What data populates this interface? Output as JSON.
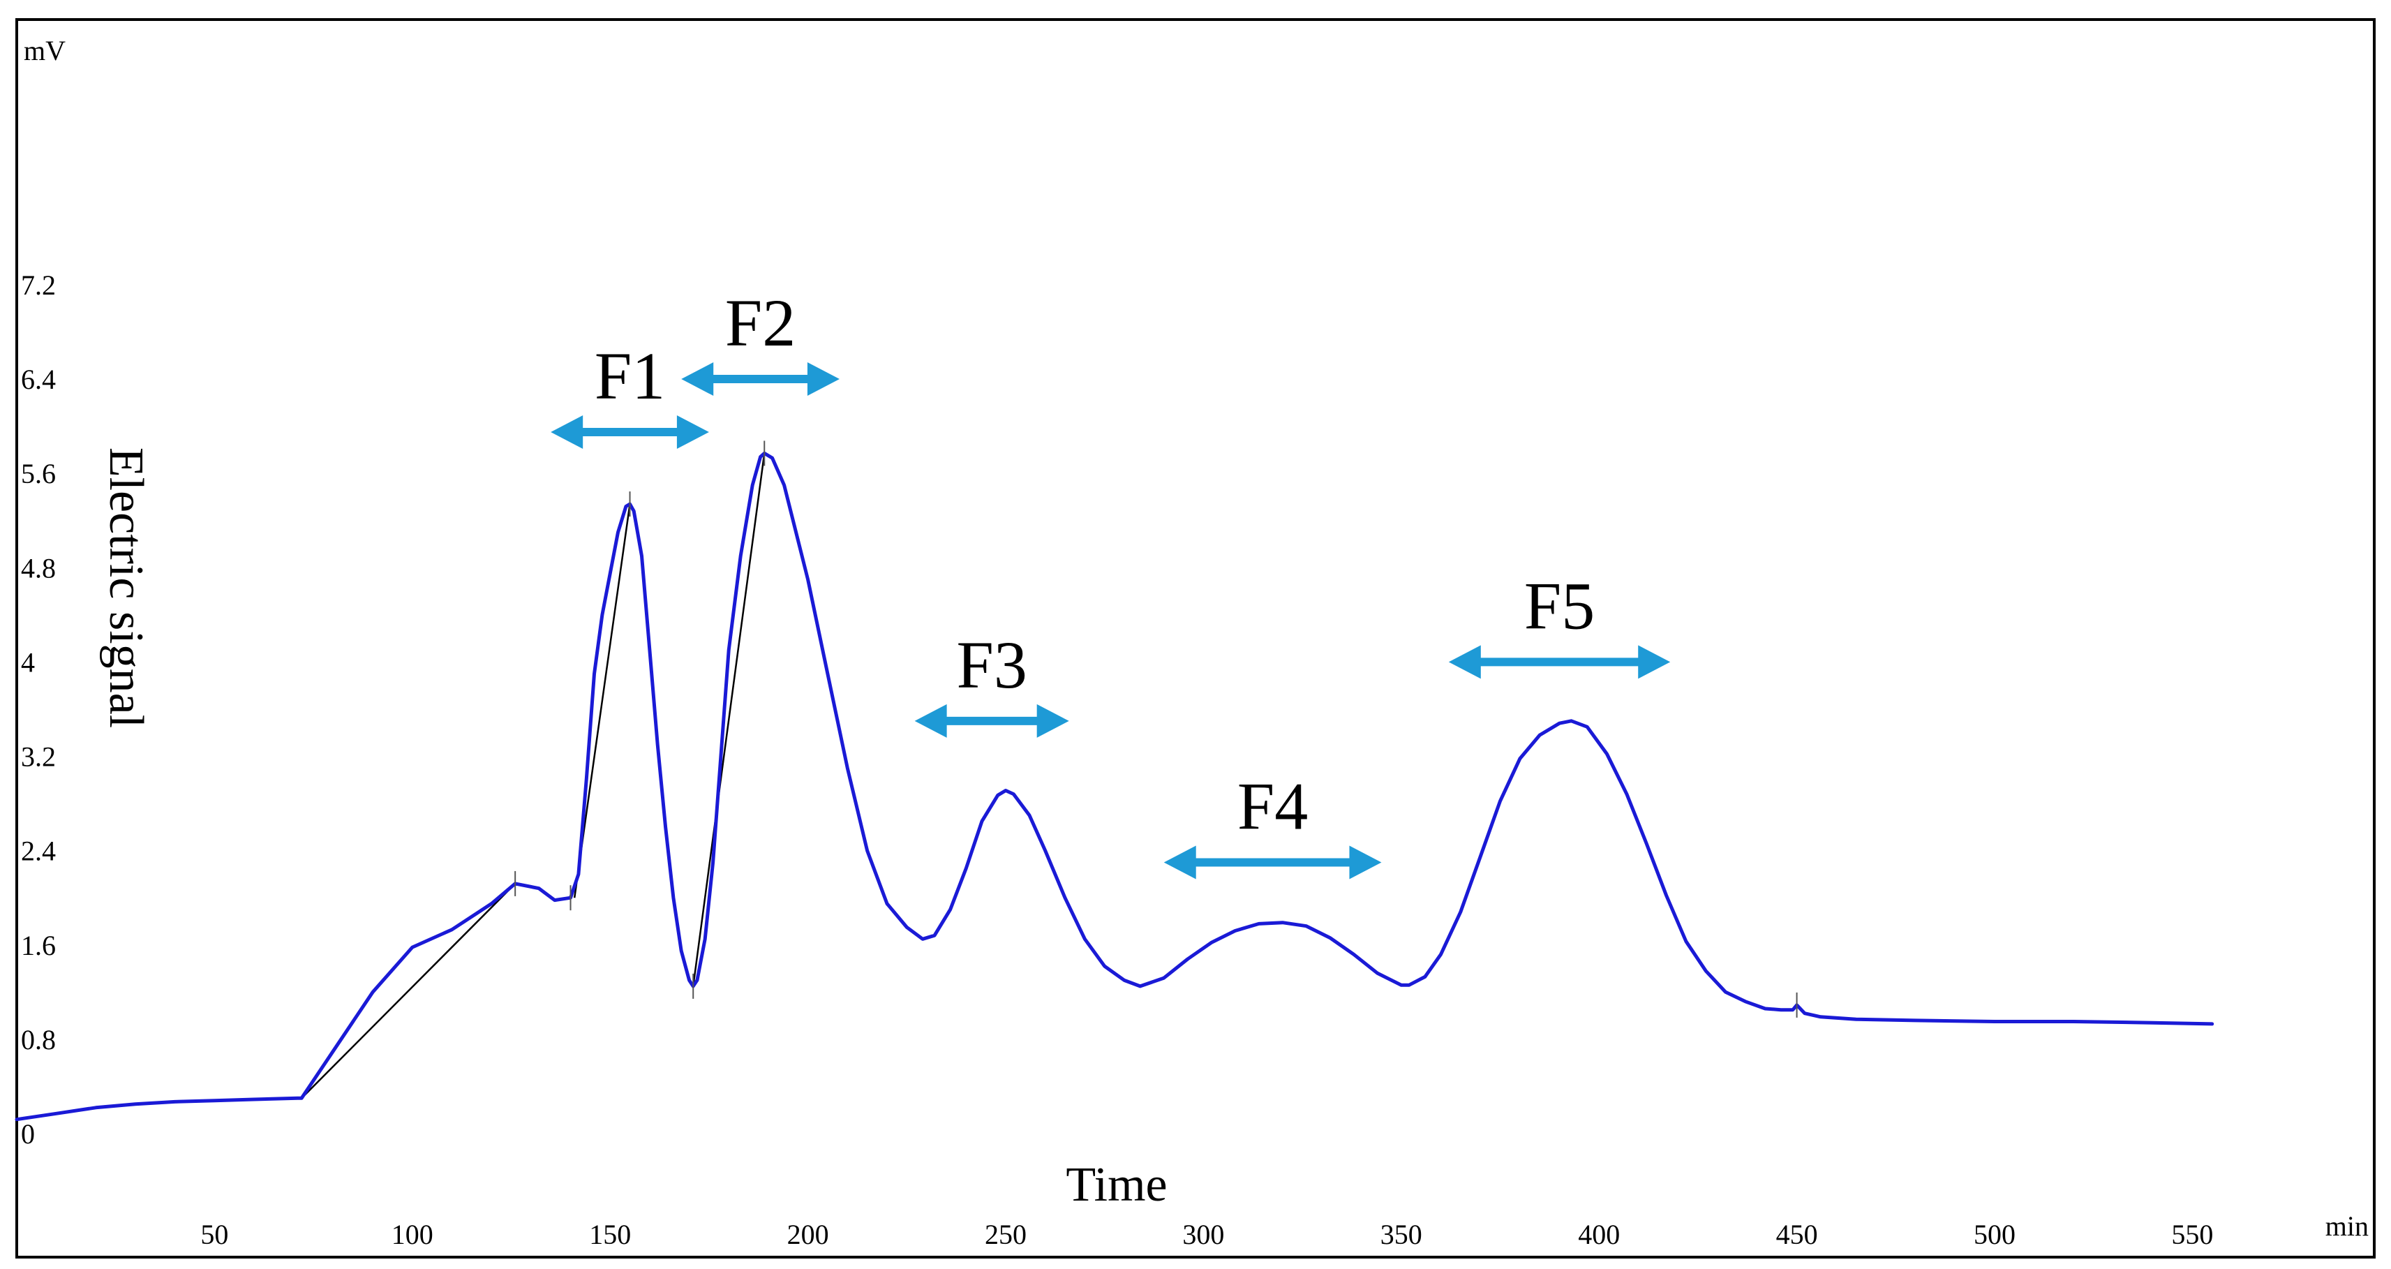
{
  "chart_data": {
    "type": "line",
    "y_unit": "mV",
    "x_unit": "min",
    "xlabel": "Time",
    "ylabel": "Electric signal",
    "xlim": [
      0,
      585
    ],
    "ylim": [
      0,
      7.2
    ],
    "x_ticks": [
      50,
      100,
      150,
      200,
      250,
      300,
      350,
      400,
      450,
      500,
      550
    ],
    "y_ticks": [
      0,
      0.8,
      1.6,
      2.4,
      3.2,
      4,
      4.8,
      5.6,
      6.4,
      7.2
    ],
    "y_tick_labels": [
      "0",
      "0.8",
      "1.6",
      "2.4",
      "3.2",
      "4",
      "4.8",
      "5.6",
      "6.4",
      "7.2"
    ],
    "grid": false,
    "series": [
      {
        "color": "#1a1ad6",
        "points": [
          [
            0,
            0.12
          ],
          [
            10,
            0.17
          ],
          [
            20,
            0.22
          ],
          [
            30,
            0.25
          ],
          [
            40,
            0.27
          ],
          [
            50,
            0.28
          ],
          [
            60,
            0.29
          ],
          [
            71,
            0.3
          ],
          [
            72,
            0.3
          ],
          [
            80,
            0.7
          ],
          [
            90,
            1.2
          ],
          [
            100,
            1.58
          ],
          [
            110,
            1.73
          ],
          [
            120,
            1.95
          ],
          [
            126,
            2.12
          ],
          [
            132,
            2.08
          ],
          [
            136,
            1.98
          ],
          [
            140,
            2.0
          ],
          [
            142,
            2.2
          ],
          [
            144,
            3.0
          ],
          [
            146,
            3.9
          ],
          [
            148,
            4.4
          ],
          [
            150,
            4.75
          ],
          [
            152,
            5.1
          ],
          [
            154,
            5.32
          ],
          [
            155,
            5.34
          ],
          [
            156,
            5.28
          ],
          [
            158,
            4.9
          ],
          [
            160,
            4.1
          ],
          [
            162,
            3.3
          ],
          [
            164,
            2.6
          ],
          [
            166,
            2.0
          ],
          [
            168,
            1.55
          ],
          [
            170,
            1.3
          ],
          [
            171,
            1.25
          ],
          [
            172,
            1.3
          ],
          [
            174,
            1.65
          ],
          [
            176,
            2.3
          ],
          [
            178,
            3.2
          ],
          [
            180,
            4.1
          ],
          [
            183,
            4.9
          ],
          [
            186,
            5.5
          ],
          [
            188,
            5.74
          ],
          [
            189,
            5.77
          ],
          [
            191,
            5.73
          ],
          [
            194,
            5.5
          ],
          [
            197,
            5.1
          ],
          [
            200,
            4.7
          ],
          [
            205,
            3.9
          ],
          [
            210,
            3.1
          ],
          [
            215,
            2.4
          ],
          [
            220,
            1.95
          ],
          [
            225,
            1.75
          ],
          [
            229,
            1.65
          ],
          [
            232,
            1.68
          ],
          [
            236,
            1.9
          ],
          [
            240,
            2.25
          ],
          [
            244,
            2.65
          ],
          [
            248,
            2.87
          ],
          [
            250,
            2.91
          ],
          [
            252,
            2.88
          ],
          [
            256,
            2.7
          ],
          [
            260,
            2.4
          ],
          [
            265,
            2.0
          ],
          [
            270,
            1.65
          ],
          [
            275,
            1.42
          ],
          [
            280,
            1.3
          ],
          [
            284,
            1.25
          ],
          [
            290,
            1.32
          ],
          [
            296,
            1.48
          ],
          [
            302,
            1.62
          ],
          [
            308,
            1.72
          ],
          [
            314,
            1.78
          ],
          [
            320,
            1.79
          ],
          [
            326,
            1.76
          ],
          [
            332,
            1.66
          ],
          [
            338,
            1.52
          ],
          [
            344,
            1.36
          ],
          [
            350,
            1.26
          ],
          [
            352,
            1.26
          ],
          [
            356,
            1.33
          ],
          [
            360,
            1.52
          ],
          [
            365,
            1.88
          ],
          [
            370,
            2.35
          ],
          [
            375,
            2.82
          ],
          [
            380,
            3.18
          ],
          [
            385,
            3.38
          ],
          [
            390,
            3.48
          ],
          [
            393,
            3.5
          ],
          [
            397,
            3.45
          ],
          [
            402,
            3.22
          ],
          [
            407,
            2.88
          ],
          [
            412,
            2.46
          ],
          [
            417,
            2.02
          ],
          [
            422,
            1.63
          ],
          [
            427,
            1.38
          ],
          [
            432,
            1.2
          ],
          [
            437,
            1.12
          ],
          [
            442,
            1.06
          ],
          [
            446,
            1.05
          ],
          [
            449,
            1.05
          ],
          [
            450,
            1.09
          ],
          [
            452,
            1.02
          ],
          [
            456,
            0.99
          ],
          [
            465,
            0.97
          ],
          [
            480,
            0.96
          ],
          [
            500,
            0.95
          ],
          [
            520,
            0.95
          ],
          [
            540,
            0.94
          ],
          [
            555,
            0.93
          ]
        ]
      }
    ],
    "annotations": [
      {
        "label": "F1",
        "x_start": 135,
        "x_end": 175,
        "y": 5.95
      },
      {
        "label": "F2",
        "x_start": 168,
        "x_end": 208,
        "y": 6.4
      },
      {
        "label": "F3",
        "x_start": 227,
        "x_end": 266,
        "y": 3.5
      },
      {
        "label": "F4",
        "x_start": 290,
        "x_end": 345,
        "y": 2.3
      },
      {
        "label": "F5",
        "x_start": 362,
        "x_end": 418,
        "y": 4.0
      }
    ],
    "colors": {
      "line": "#1a1ad6",
      "arrow": "#1e9ad6",
      "baseline": "#000000"
    }
  }
}
